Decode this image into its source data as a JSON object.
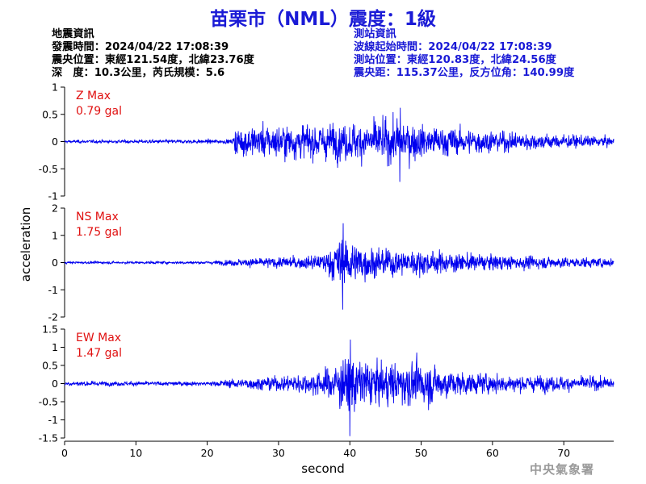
{
  "title": "苗栗市（NML）震度：1級",
  "event_info": {
    "header": "地震資訊",
    "origin_time": "發震時間：2024/04/22 17:08:39",
    "epicenter": "震央位置：東經121.54度，北緯23.76度",
    "depth_magnitude": "深　度：10.3公里，芮氏規模：5.6"
  },
  "station_info": {
    "header": "測站資訊",
    "waveform_start": "波線起始時間：2024/04/22 17:08:39",
    "station_location": "測站位置：東經120.83度，北緯24.56度",
    "distance_azimuth": "震央距：115.37公里，反方位角：140.99度"
  },
  "credit": "中央氣象署",
  "colors": {
    "title": "#1a1ad6",
    "trace": "#0000ee",
    "max_label": "#e01010",
    "credit": "#9a9a9a"
  },
  "chart_data": {
    "type": "line",
    "xlabel": "second",
    "ylabel": "acceleration",
    "xlim": [
      0,
      77
    ],
    "x_ticks": [
      0,
      10,
      20,
      30,
      40,
      50,
      60,
      70
    ],
    "x_tick_labels": [
      "0",
      "10",
      "20",
      "30",
      "40",
      "50",
      "60",
      "70"
    ],
    "grid": false,
    "panels": [
      {
        "name": "Z",
        "max_label": "Z Max",
        "max_value": "0.79 gal",
        "ylim": [
          -1,
          1
        ],
        "y_ticks": [
          -1,
          -0.5,
          0,
          0.5,
          1
        ],
        "y_tick_labels": [
          "-1",
          "-0.5",
          "0",
          "0.5",
          "1"
        ],
        "envelope_x": [
          0,
          23.5,
          24,
          30,
          40,
          47,
          50,
          60,
          70,
          77
        ],
        "envelope_y": [
          0.05,
          0.07,
          0.5,
          0.55,
          0.6,
          0.75,
          0.55,
          0.35,
          0.22,
          0.15
        ]
      },
      {
        "name": "NS",
        "max_label": "NS Max",
        "max_value": "1.75 gal",
        "ylim": [
          -2,
          2
        ],
        "y_ticks": [
          -2,
          -1,
          0,
          1,
          2
        ],
        "y_tick_labels": [
          "-2",
          "-1",
          "0",
          "1",
          "2"
        ],
        "envelope_x": [
          0,
          20,
          25,
          30,
          36,
          39,
          41,
          45,
          50,
          60,
          70,
          77
        ],
        "envelope_y": [
          0.08,
          0.1,
          0.25,
          0.35,
          0.5,
          1.75,
          1.2,
          0.9,
          0.8,
          0.5,
          0.35,
          0.3
        ]
      },
      {
        "name": "EW",
        "max_label": "EW Max",
        "max_value": "1.47 gal",
        "ylim": [
          -1.5,
          1.5
        ],
        "y_ticks": [
          -1.5,
          -1,
          -0.5,
          0,
          0.5,
          1,
          1.5
        ],
        "y_tick_labels": [
          "-1.5",
          "-1",
          "-0.5",
          "0",
          "0.5",
          "1",
          "1.5"
        ],
        "envelope_x": [
          0,
          20,
          25,
          30,
          36,
          40,
          41,
          45,
          50,
          55,
          60,
          70,
          77
        ],
        "envelope_y": [
          0.12,
          0.1,
          0.25,
          0.35,
          0.6,
          1.47,
          1.3,
          1.0,
          1.1,
          0.6,
          0.45,
          0.35,
          0.3
        ]
      }
    ]
  }
}
